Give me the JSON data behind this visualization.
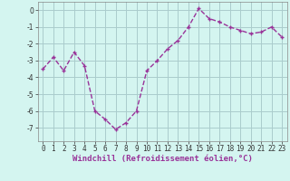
{
  "x": [
    0,
    1,
    2,
    3,
    4,
    5,
    6,
    7,
    8,
    9,
    10,
    11,
    12,
    13,
    14,
    15,
    16,
    17,
    18,
    19,
    20,
    21,
    22,
    23
  ],
  "y": [
    -3.5,
    -2.8,
    -3.6,
    -2.5,
    -3.3,
    -6.0,
    -6.5,
    -7.1,
    -6.7,
    -6.0,
    -3.6,
    -3.0,
    -2.3,
    -1.8,
    -1.0,
    0.1,
    -0.5,
    -0.7,
    -1.0,
    -1.2,
    -1.4,
    -1.3,
    -1.0,
    -1.6
  ],
  "line_color": "#993399",
  "marker": "+",
  "marker_size": 3,
  "marker_linewidth": 1.0,
  "bg_color": "#d4f5f0",
  "grid_color": "#aacccc",
  "xlabel": "Windchill (Refroidissement éolien,°C)",
  "xlabel_fontsize": 6.5,
  "ylabel_ticks": [
    0,
    -1,
    -2,
    -3,
    -4,
    -5,
    -6,
    -7
  ],
  "xlim": [
    -0.5,
    23.5
  ],
  "ylim": [
    -7.8,
    0.5
  ],
  "tick_fontsize": 5.5,
  "line_width": 1.0
}
